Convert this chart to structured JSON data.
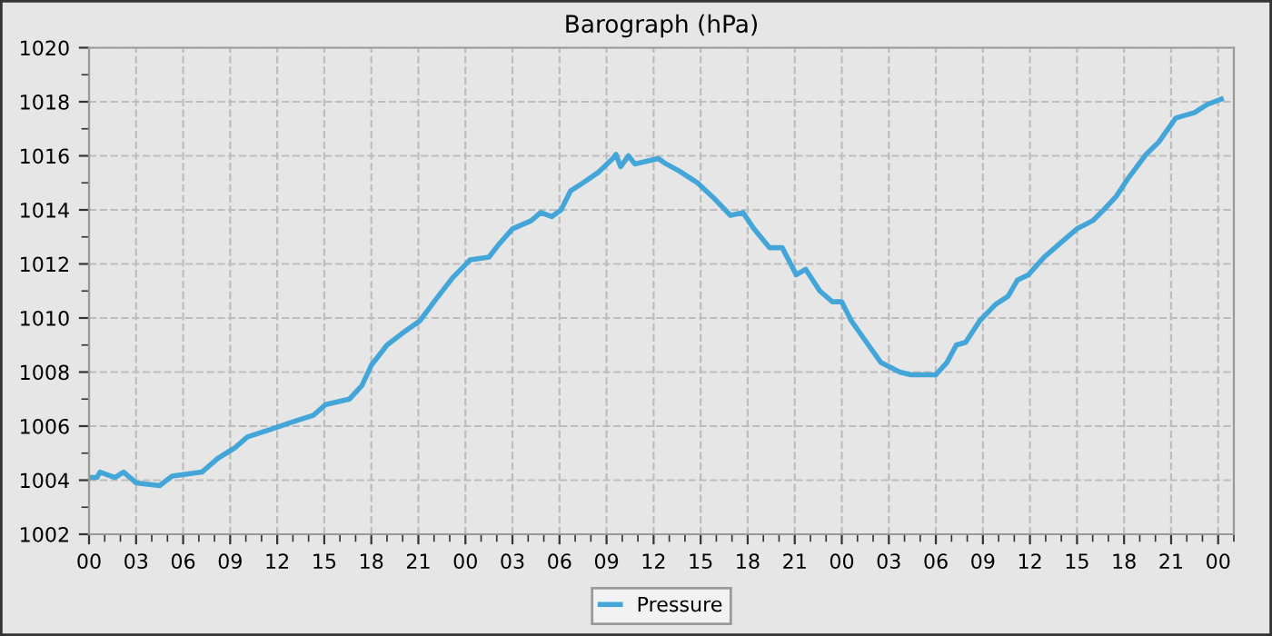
{
  "chart_data": {
    "type": "line",
    "title": "Barograph (hPa)",
    "series": [
      {
        "name": "Pressure",
        "color": "#44a6d8",
        "x": [
          0,
          0.5,
          0.7,
          1.65,
          2.2,
          3.0,
          4.5,
          5.3,
          7.2,
          8.2,
          9.3,
          10.1,
          11.7,
          13.2,
          14.3,
          15.1,
          16.6,
          17.4,
          18.0,
          19.0,
          19.9,
          21.1,
          22.0,
          23.2,
          24.3,
          25.5,
          26.1,
          27.0,
          28.2,
          28.8,
          29.5,
          30.1,
          30.7,
          31.5,
          32.5,
          33.4,
          33.6,
          33.9,
          34.4,
          34.8,
          36.3,
          36.8,
          37.6,
          38.8,
          39.9,
          40.9,
          41.7,
          42.4,
          43.4,
          44.2,
          45.1,
          45.7,
          46.6,
          47.4,
          48.0,
          48.6,
          49.7,
          50.5,
          51.7,
          52.4,
          54.0,
          54.7,
          55.3,
          55.9,
          56.8,
          57.8,
          58.6,
          59.2,
          59.9,
          60.9,
          61.8,
          63.0,
          64.0,
          64.7,
          65.5,
          66.3,
          67.4,
          68.2,
          69.3,
          70.5,
          71.3,
          72.2
        ],
        "values": [
          1004.1,
          1004.1,
          1004.3,
          1004.1,
          1004.3,
          1003.9,
          1003.8,
          1004.15,
          1004.3,
          1004.8,
          1005.2,
          1005.6,
          1005.9,
          1006.2,
          1006.4,
          1006.8,
          1007.0,
          1007.5,
          1008.25,
          1009.0,
          1009.4,
          1009.9,
          1010.6,
          1011.5,
          1012.15,
          1012.25,
          1012.7,
          1013.3,
          1013.6,
          1013.9,
          1013.75,
          1014.0,
          1014.7,
          1015.0,
          1015.4,
          1015.9,
          1016.05,
          1015.6,
          1016.0,
          1015.7,
          1015.9,
          1015.7,
          1015.45,
          1015.0,
          1014.4,
          1013.8,
          1013.9,
          1013.3,
          1012.6,
          1012.6,
          1011.6,
          1011.8,
          1011.0,
          1010.6,
          1010.6,
          1009.9,
          1009.0,
          1008.35,
          1008.0,
          1007.9,
          1007.9,
          1008.35,
          1009.0,
          1009.1,
          1009.9,
          1010.5,
          1010.8,
          1011.4,
          1011.6,
          1012.25,
          1012.7,
          1013.3,
          1013.6,
          1014.0,
          1014.5,
          1015.2,
          1016.05,
          1016.5,
          1017.4,
          1017.6,
          1017.9,
          1018.1
        ]
      }
    ],
    "xlim": [
      0,
      73
    ],
    "xticks": [
      {
        "value": 0,
        "label": "00"
      },
      {
        "value": 1,
        "label": null
      },
      {
        "value": 2,
        "label": null
      },
      {
        "value": 3,
        "label": "03"
      },
      {
        "value": 4,
        "label": null
      },
      {
        "value": 5,
        "label": null
      },
      {
        "value": 6,
        "label": "06"
      },
      {
        "value": 7,
        "label": null
      },
      {
        "value": 8,
        "label": null
      },
      {
        "value": 9,
        "label": "09"
      },
      {
        "value": 10,
        "label": null
      },
      {
        "value": 11,
        "label": null
      },
      {
        "value": 12,
        "label": "12"
      },
      {
        "value": 13,
        "label": null
      },
      {
        "value": 14,
        "label": null
      },
      {
        "value": 15,
        "label": "15"
      },
      {
        "value": 16,
        "label": null
      },
      {
        "value": 17,
        "label": null
      },
      {
        "value": 18,
        "label": "18"
      },
      {
        "value": 19,
        "label": null
      },
      {
        "value": 20,
        "label": null
      },
      {
        "value": 21,
        "label": "21"
      },
      {
        "value": 22,
        "label": null
      },
      {
        "value": 23,
        "label": null
      },
      {
        "value": 24,
        "label": "00"
      },
      {
        "value": 25,
        "label": null
      },
      {
        "value": 26,
        "label": null
      },
      {
        "value": 27,
        "label": "03"
      },
      {
        "value": 28,
        "label": null
      },
      {
        "value": 29,
        "label": null
      },
      {
        "value": 30,
        "label": "06"
      },
      {
        "value": 31,
        "label": null
      },
      {
        "value": 32,
        "label": null
      },
      {
        "value": 33,
        "label": "09"
      },
      {
        "value": 34,
        "label": null
      },
      {
        "value": 35,
        "label": null
      },
      {
        "value": 36,
        "label": "12"
      },
      {
        "value": 37,
        "label": null
      },
      {
        "value": 38,
        "label": null
      },
      {
        "value": 39,
        "label": "15"
      },
      {
        "value": 40,
        "label": null
      },
      {
        "value": 41,
        "label": null
      },
      {
        "value": 42,
        "label": "18"
      },
      {
        "value": 43,
        "label": null
      },
      {
        "value": 44,
        "label": null
      },
      {
        "value": 45,
        "label": "21"
      },
      {
        "value": 46,
        "label": null
      },
      {
        "value": 47,
        "label": null
      },
      {
        "value": 48,
        "label": "00"
      },
      {
        "value": 49,
        "label": null
      },
      {
        "value": 50,
        "label": null
      },
      {
        "value": 51,
        "label": "03"
      },
      {
        "value": 52,
        "label": null
      },
      {
        "value": 53,
        "label": null
      },
      {
        "value": 54,
        "label": "06"
      },
      {
        "value": 55,
        "label": null
      },
      {
        "value": 56,
        "label": null
      },
      {
        "value": 57,
        "label": "09"
      },
      {
        "value": 58,
        "label": null
      },
      {
        "value": 59,
        "label": null
      },
      {
        "value": 60,
        "label": "12"
      },
      {
        "value": 61,
        "label": null
      },
      {
        "value": 62,
        "label": null
      },
      {
        "value": 63,
        "label": "15"
      },
      {
        "value": 64,
        "label": null
      },
      {
        "value": 65,
        "label": null
      },
      {
        "value": 66,
        "label": "18"
      },
      {
        "value": 67,
        "label": null
      },
      {
        "value": 68,
        "label": null
      },
      {
        "value": 69,
        "label": "21"
      },
      {
        "value": 70,
        "label": null
      },
      {
        "value": 71,
        "label": null
      },
      {
        "value": 72,
        "label": "00"
      },
      {
        "value": 73,
        "label": null
      }
    ],
    "ylim": [
      1002,
      1020
    ],
    "yticks": [
      1002,
      {
        "value": 1003,
        "label": null
      },
      1004,
      {
        "value": 1005,
        "label": null
      },
      1006,
      {
        "value": 1007,
        "label": null
      },
      1008,
      {
        "value": 1009,
        "label": null
      },
      1010,
      {
        "value": 1011,
        "label": null
      },
      1012,
      {
        "value": 1013,
        "label": null
      },
      1014,
      {
        "value": 1015,
        "label": null
      },
      1016,
      {
        "value": 1017,
        "label": null
      },
      1018,
      {
        "value": 1019,
        "label": null
      },
      1020
    ],
    "grid": true,
    "legend": "bottom",
    "line_style": "solid",
    "marker": "none"
  }
}
